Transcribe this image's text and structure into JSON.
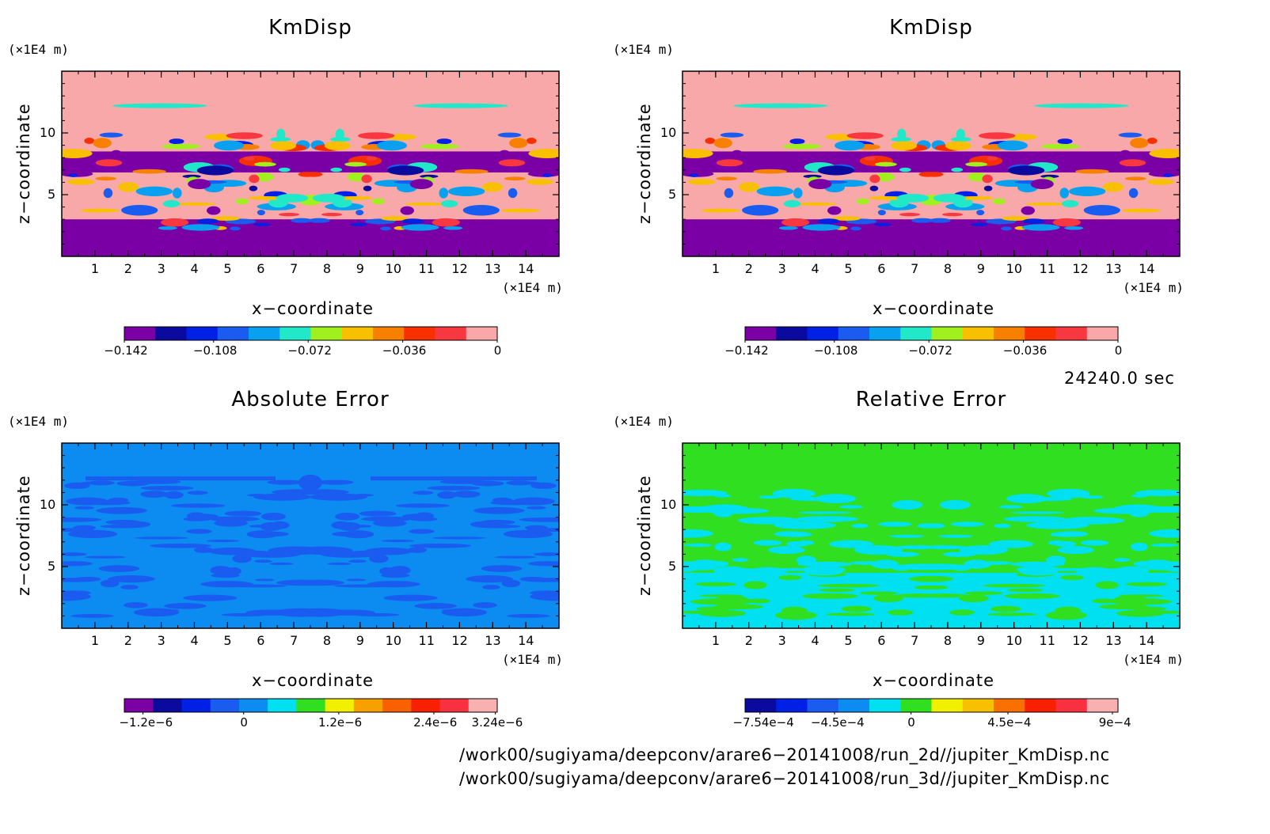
{
  "colors": {
    "km_palette": [
      "#7a00a6",
      "#0a0a9e",
      "#0020e6",
      "#1a5cf0",
      "#0aa0f0",
      "#20e8c8",
      "#a0f020",
      "#f8c000",
      "#f88000",
      "#f83000",
      "#f83840",
      "#f8a8a8"
    ],
    "abs_palette": [
      "#7a00a6",
      "#0a0a9e",
      "#0020e6",
      "#1a5cf0",
      "#0c8cf0",
      "#00e0f0",
      "#30e020",
      "#f0f000",
      "#f8a000",
      "#f86000",
      "#f82000",
      "#f83040",
      "#f8b0b0"
    ],
    "rel_palette": [
      "#0a0a9e",
      "#0020e6",
      "#1a5cf0",
      "#0c8cf0",
      "#00e0f0",
      "#30e020",
      "#f0f000",
      "#f8c000",
      "#f87000",
      "#f82000",
      "#f83040",
      "#f8b0b0"
    ]
  },
  "chart_data": [
    {
      "type": "heatmap",
      "title": "KmDisp",
      "xlabel": "x−coordinate",
      "ylabel": "z−coordinate",
      "x_unit": "(×1E4 m)",
      "y_unit": "(×1E4 m)",
      "xlim": [
        0,
        15
      ],
      "ylim": [
        0,
        15
      ],
      "x_ticks": [
        "1",
        "2",
        "3",
        "4",
        "5",
        "6",
        "7",
        "8",
        "9",
        "10",
        "11",
        "12",
        "13",
        "14"
      ],
      "y_ticks": [
        "5",
        "10"
      ],
      "colorbar_labels": [
        "−0.142",
        "−0.108",
        "−0.072",
        "−0.036",
        "0"
      ],
      "colorbar_values": [
        -0.142,
        -0.108,
        -0.072,
        -0.036,
        0
      ]
    },
    {
      "type": "heatmap",
      "title": "KmDisp",
      "xlabel": "x−coordinate",
      "ylabel": "z−coordinate",
      "x_unit": "(×1E4 m)",
      "y_unit": "(×1E4 m)",
      "xlim": [
        0,
        15
      ],
      "ylim": [
        0,
        15
      ],
      "x_ticks": [
        "1",
        "2",
        "3",
        "4",
        "5",
        "6",
        "7",
        "8",
        "9",
        "10",
        "11",
        "12",
        "13",
        "14"
      ],
      "y_ticks": [
        "5",
        "10"
      ],
      "colorbar_labels": [
        "−0.142",
        "−0.108",
        "−0.072",
        "−0.036",
        "0"
      ],
      "colorbar_values": [
        -0.142,
        -0.108,
        -0.072,
        -0.036,
        0
      ]
    },
    {
      "type": "heatmap",
      "title": "Absolute Error",
      "xlabel": "x−coordinate",
      "ylabel": "z−coordinate",
      "x_unit": "(×1E4 m)",
      "y_unit": "(×1E4 m)",
      "xlim": [
        0,
        15
      ],
      "ylim": [
        0,
        15
      ],
      "x_ticks": [
        "1",
        "2",
        "3",
        "4",
        "5",
        "6",
        "7",
        "8",
        "9",
        "10",
        "11",
        "12",
        "13",
        "14"
      ],
      "y_ticks": [
        "5",
        "10"
      ],
      "colorbar_labels": [
        "−1.2e−6",
        "0",
        "1.2e−6",
        "2.4e−6",
        "3.24e−6"
      ],
      "colorbar_values": [
        -1.2e-06,
        0,
        1.2e-06,
        2.4e-06,
        3.24e-06
      ]
    },
    {
      "type": "heatmap",
      "title": "Relative Error",
      "xlabel": "x−coordinate",
      "ylabel": "z−coordinate",
      "x_unit": "(×1E4 m)",
      "y_unit": "(×1E4 m)",
      "xlim": [
        0,
        15
      ],
      "ylim": [
        0,
        15
      ],
      "x_ticks": [
        "1",
        "2",
        "3",
        "4",
        "5",
        "6",
        "7",
        "8",
        "9",
        "10",
        "11",
        "12",
        "13",
        "14"
      ],
      "y_ticks": [
        "5",
        "10"
      ],
      "colorbar_labels": [
        "−7.54e−4",
        "−4.5e−4",
        "0",
        "4.5e−4",
        "9e−4"
      ],
      "colorbar_values": [
        -0.000754,
        -0.00045,
        0,
        0.00045,
        0.0009
      ]
    }
  ],
  "timestamp": "24240.0 sec",
  "footer": {
    "path_2d": "/work00/sugiyama/deepconv/arare6−20141008/run_2d//jupiter_KmDisp.nc",
    "path_3d": "/work00/sugiyama/deepconv/arare6−20141008/run_3d//jupiter_KmDisp.nc"
  }
}
